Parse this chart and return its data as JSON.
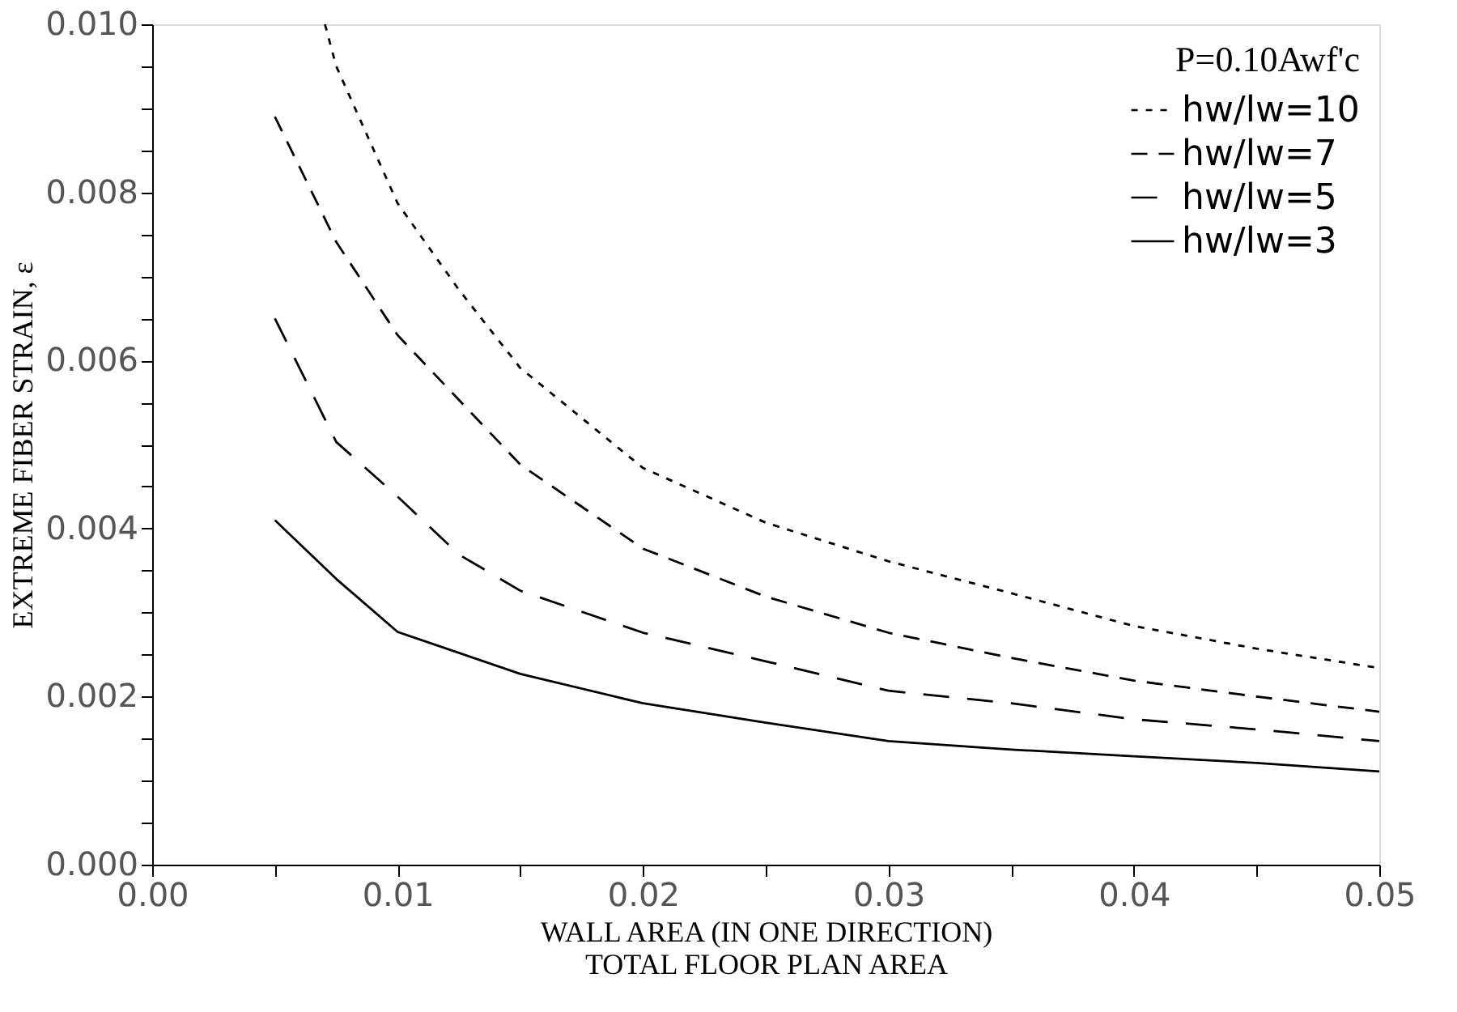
{
  "chart_data": {
    "type": "line",
    "xlabel": "WALL AREA (IN ONE DIRECTION)\nTOTAL FLOOR PLAN AREA",
    "ylabel": "EXTREME FIBER STRAIN, ε",
    "legend_title": "P=0.10Awf'c",
    "legend": "top right",
    "grid": false,
    "xlim": [
      0,
      0.05
    ],
    "ylim": [
      0,
      0.01
    ],
    "xticks": [
      {
        "value": 0,
        "label": "0.00"
      },
      {
        "value": 0.005,
        "label": null
      },
      {
        "value": 0.01,
        "label": "0.01"
      },
      {
        "value": 0.015,
        "label": null
      },
      {
        "value": 0.02,
        "label": "0.02"
      },
      {
        "value": 0.025,
        "label": null
      },
      {
        "value": 0.03,
        "label": "0.03"
      },
      {
        "value": 0.035,
        "label": null
      },
      {
        "value": 0.04,
        "label": "0.04"
      },
      {
        "value": 0.045,
        "label": null
      },
      {
        "value": 0.05,
        "label": "0.05"
      }
    ],
    "yticks": [
      {
        "value": 0,
        "label": "0.000"
      },
      {
        "value": 0.0005,
        "label": null
      },
      {
        "value": 0.001,
        "label": null
      },
      {
        "value": 0.0015,
        "label": null
      },
      {
        "value": 0.002,
        "label": "0.002"
      },
      {
        "value": 0.0025,
        "label": null
      },
      {
        "value": 0.003,
        "label": null
      },
      {
        "value": 0.0035,
        "label": null
      },
      {
        "value": 0.004,
        "label": "0.004"
      },
      {
        "value": 0.0045,
        "label": null
      },
      {
        "value": 0.005,
        "label": null
      },
      {
        "value": 0.0055,
        "label": null
      },
      {
        "value": 0.006,
        "label": "0.006"
      },
      {
        "value": 0.0065,
        "label": null
      },
      {
        "value": 0.007,
        "label": null
      },
      {
        "value": 0.0075,
        "label": null
      },
      {
        "value": 0.008,
        "label": "0.008"
      },
      {
        "value": 0.0085,
        "label": null
      },
      {
        "value": 0.009,
        "label": null
      },
      {
        "value": 0.0095,
        "label": null
      },
      {
        "value": 0.01,
        "label": "0.010"
      }
    ],
    "series": [
      {
        "name": "hw/lw=10",
        "color": "#000000",
        "line_style": "dotted",
        "x": [
          0.00704,
          0.0075,
          0.01,
          0.0125,
          0.015,
          0.02,
          0.025,
          0.03,
          0.035,
          0.04,
          0.045,
          0.05
        ],
        "values": [
          0.01,
          0.0095,
          0.00787,
          0.00684,
          0.00591,
          0.00472,
          0.00407,
          0.00361,
          0.00323,
          0.00284,
          0.00257,
          0.00234
        ]
      },
      {
        "name": "hw/lw=7",
        "color": "#000000",
        "line_style": "dashed",
        "x": [
          0.005,
          0.0075,
          0.01,
          0.0125,
          0.015,
          0.02,
          0.025,
          0.03,
          0.035,
          0.04,
          0.045,
          0.05
        ],
        "values": [
          0.0089,
          0.00741,
          0.0063,
          0.00553,
          0.00476,
          0.00376,
          0.00319,
          0.00276,
          0.00246,
          0.00219,
          0.002,
          0.00182
        ]
      },
      {
        "name": "hw/lw=5",
        "color": "#000000",
        "line_style": "dashed",
        "x": [
          0.005,
          0.0075,
          0.01,
          0.0125,
          0.015,
          0.02,
          0.025,
          0.03,
          0.035,
          0.04,
          0.045,
          0.05
        ],
        "values": [
          0.0065,
          0.00503,
          0.00438,
          0.00369,
          0.00326,
          0.00276,
          0.00242,
          0.00207,
          0.00192,
          0.00173,
          0.00161,
          0.00147
        ]
      },
      {
        "name": "hw/lw=3",
        "color": "#000000",
        "line_style": "solid",
        "x": [
          0.005,
          0.0075,
          0.01,
          0.015,
          0.02,
          0.025,
          0.03,
          0.035,
          0.04,
          0.045,
          0.05
        ],
        "values": [
          0.0041,
          0.0034,
          0.00277,
          0.00227,
          0.00192,
          0.00169,
          0.00147,
          0.00137,
          0.00129,
          0.00121,
          0.00111
        ]
      }
    ]
  }
}
